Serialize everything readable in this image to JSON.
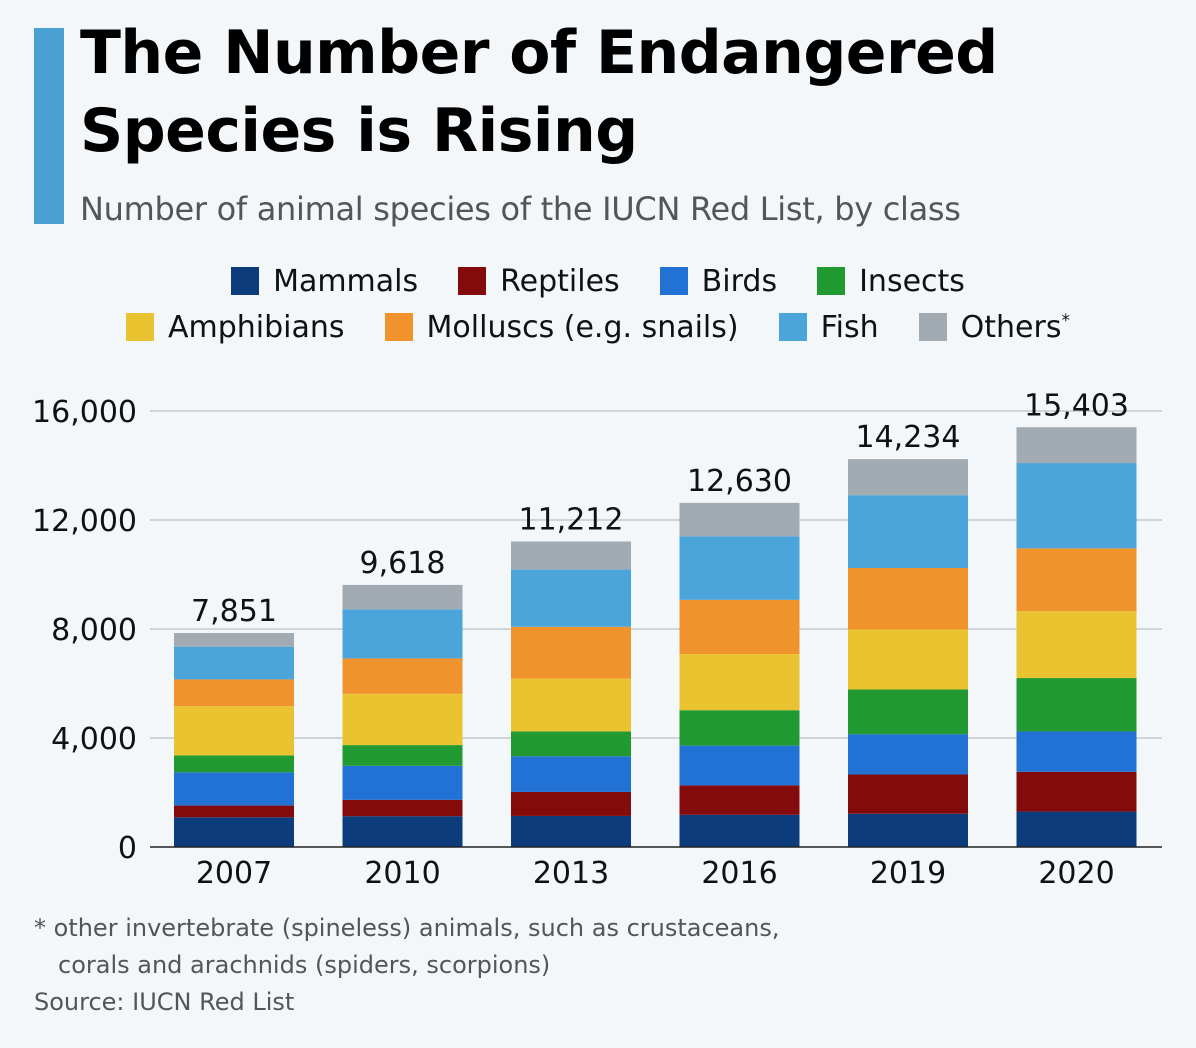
{
  "title": "The Number of Endangered Species is Rising",
  "subtitle": "Number of animal species of the IUCN Red List, by class",
  "footnote": {
    "line1": "* other invertebrate (spineless) animals, such as crustaceans,",
    "line2": "corals and arachnids (spiders, scorpions)"
  },
  "source": "Source: IUCN Red List",
  "chart_data": {
    "type": "bar",
    "stacked": true,
    "title": "The Number of Endangered Species is Rising",
    "categories": [
      "2007",
      "2010",
      "2013",
      "2016",
      "2019",
      "2020"
    ],
    "totals": [
      7851,
      9618,
      11212,
      12630,
      14234,
      15403
    ],
    "total_labels": [
      "7,851",
      "9,618",
      "11,212",
      "12,630",
      "14,234",
      "15,403"
    ],
    "ylim": [
      0,
      16000
    ],
    "yticks": [
      0,
      4000,
      8000,
      12000,
      16000
    ],
    "ytick_labels": [
      "0",
      "4,000",
      "8,000",
      "12,000",
      "16,000"
    ],
    "grid": true,
    "legend_position": "top",
    "series": [
      {
        "name": "Mammals",
        "color": "#0d3c7d",
        "values": [
          1090,
          1130,
          1140,
          1180,
          1220,
          1300
        ]
      },
      {
        "name": "Reptiles",
        "color": "#840b0b",
        "values": [
          430,
          600,
          880,
          1080,
          1440,
          1460
        ]
      },
      {
        "name": "Birds",
        "color": "#2272d6",
        "values": [
          1220,
          1250,
          1310,
          1460,
          1480,
          1480
        ]
      },
      {
        "name": "Insects",
        "color": "#229a32",
        "values": [
          620,
          760,
          910,
          1300,
          1640,
          1960
        ]
      },
      {
        "name": "Amphibians",
        "color": "#eac430",
        "values": [
          1810,
          1880,
          1940,
          2060,
          2200,
          2450
        ]
      },
      {
        "name": "Molluscs (e.g. snails)",
        "color": "#f0932d",
        "values": [
          980,
          1300,
          1900,
          1990,
          2260,
          2310
        ]
      },
      {
        "name": "Fish",
        "color": "#4ba4da",
        "values": [
          1200,
          1800,
          2100,
          2330,
          2670,
          3130
        ]
      },
      {
        "name": "Others*",
        "color": "#a2aab2",
        "values": [
          501,
          898,
          1032,
          1230,
          1324,
          1313
        ]
      }
    ]
  },
  "legend": {
    "row1": [
      {
        "label": "Mammals",
        "color": "#0d3c7d"
      },
      {
        "label": "Reptiles",
        "color": "#840b0b"
      },
      {
        "label": "Birds",
        "color": "#2272d6"
      },
      {
        "label": "Insects",
        "color": "#229a32"
      }
    ],
    "row2": [
      {
        "label": "Amphibians",
        "color": "#eac430"
      },
      {
        "label": "Molluscs (e.g. snails)",
        "color": "#f0932d"
      },
      {
        "label": "Fish",
        "color": "#4ba4da"
      },
      {
        "label": "Others",
        "sup": "*",
        "color": "#a2aab2"
      }
    ]
  }
}
